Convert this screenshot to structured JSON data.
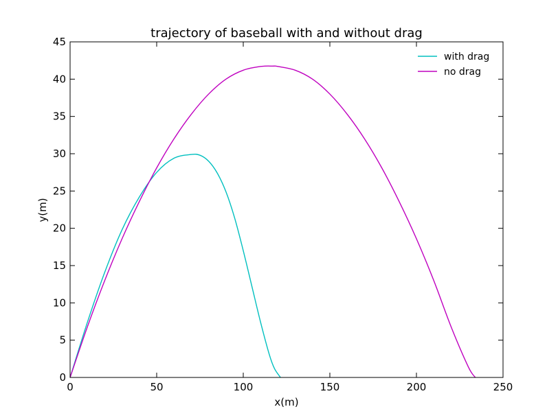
{
  "chart_data": {
    "type": "line",
    "title": "trajectory of baseball with and without drag",
    "xlabel": "x(m)",
    "ylabel": "y(m)",
    "xlim": [
      0,
      250
    ],
    "ylim": [
      0,
      45
    ],
    "xticks": [
      0,
      50,
      100,
      150,
      200,
      250
    ],
    "yticks": [
      0,
      5,
      10,
      15,
      20,
      25,
      30,
      35,
      40,
      45
    ],
    "grid": false,
    "legend": "top-right",
    "series": [
      {
        "name": "with drag",
        "color": "#00bfbf",
        "x": [
          0,
          10,
          20,
          30,
          40,
          50,
          60,
          70,
          75,
          80,
          85,
          90,
          95,
          100,
          105,
          110,
          115,
          118,
          121.5
        ],
        "y": [
          0,
          7.4,
          14.1,
          19.8,
          24.2,
          27.5,
          29.4,
          29.9,
          29.8,
          29.0,
          27.4,
          24.9,
          21.4,
          17.0,
          12.2,
          7.4,
          3.1,
          1.2,
          0
        ]
      },
      {
        "name": "no drag",
        "color": "#bf00bf",
        "x": [
          0,
          10,
          20,
          30,
          40,
          50,
          60,
          70,
          80,
          90,
          100,
          110,
          117,
          120,
          130,
          140,
          150,
          160,
          170,
          180,
          190,
          200,
          210,
          220,
          230,
          234
        ],
        "y": [
          0,
          6.8,
          13.0,
          18.6,
          23.6,
          28.1,
          32.0,
          35.3,
          38.0,
          40.0,
          41.2,
          41.7,
          41.75,
          41.7,
          41.2,
          40.0,
          38.0,
          35.3,
          32.0,
          28.1,
          23.6,
          18.6,
          13.0,
          6.8,
          1.4,
          0
        ]
      }
    ]
  }
}
